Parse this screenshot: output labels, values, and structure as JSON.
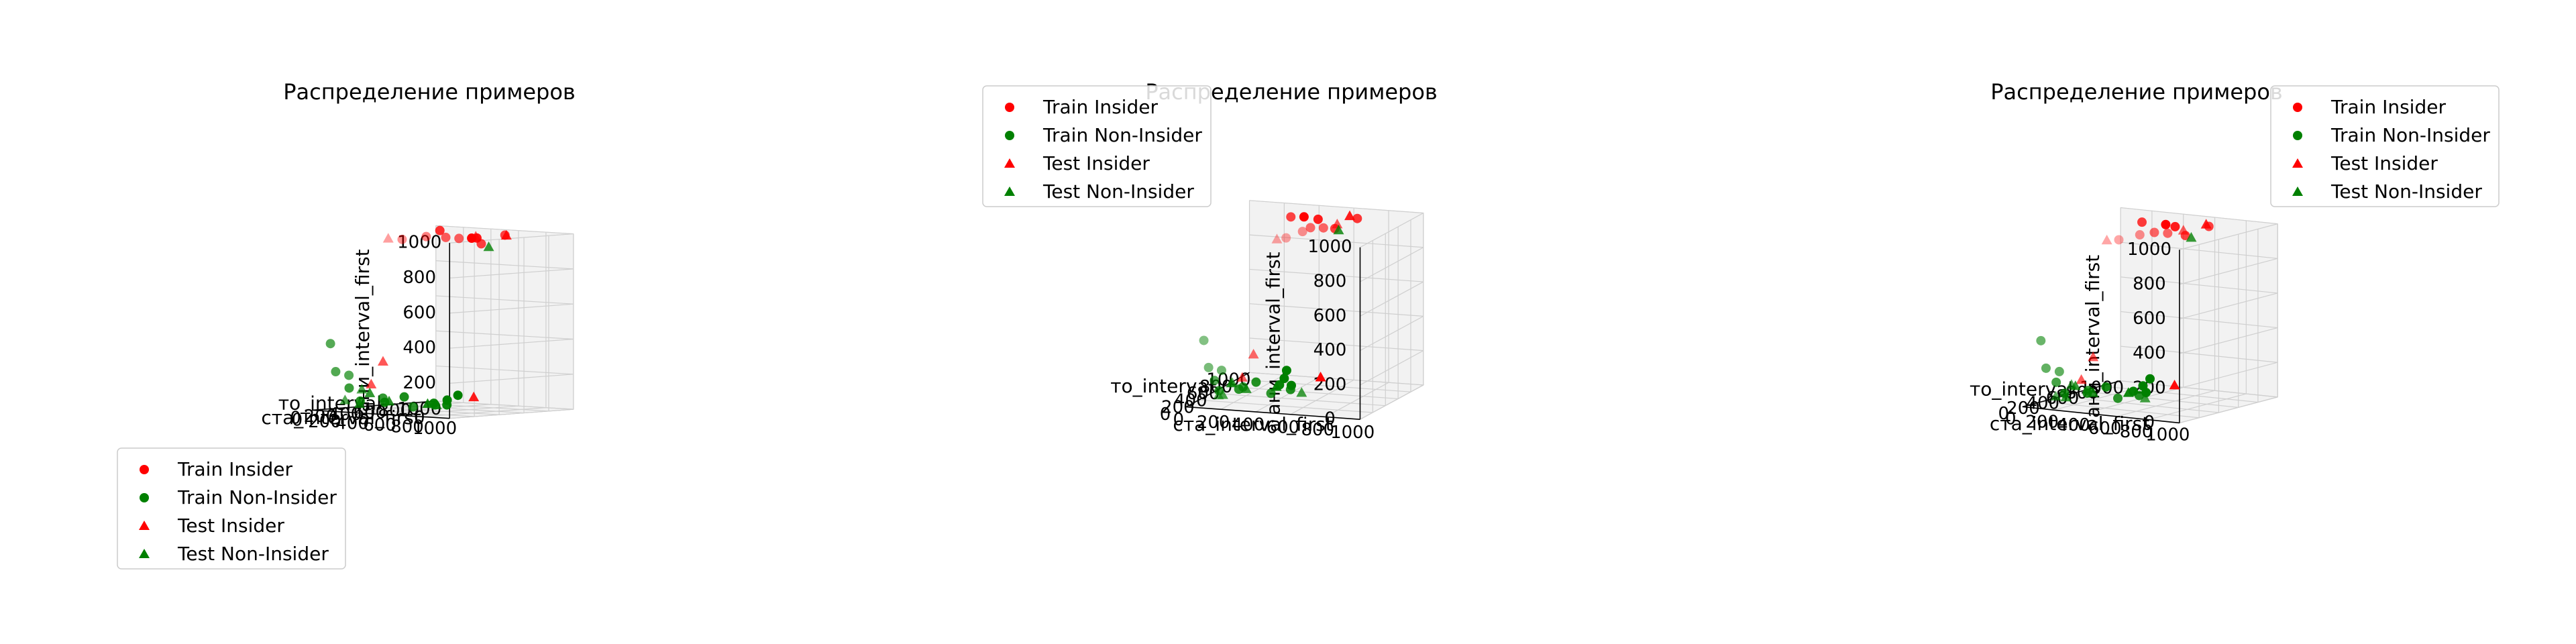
{
  "colors": {
    "train_insider": "#ff0000",
    "train_non_insider": "#008000",
    "test_insider": "#ff0000",
    "test_non_insider": "#008000"
  },
  "legend_labels": [
    "Train Insider",
    "Train Non-Insider",
    "Test Insider",
    "Test Non-Insider"
  ],
  "ticks": [
    "0",
    "200",
    "400",
    "600",
    "800",
    "1000"
  ],
  "chart_data": [
    {
      "type": "scatter",
      "projection": "3d",
      "title": "Распределение примеров",
      "xlabel": "то_interval",
      "ylabel": "ста_interval_first",
      "zlabel": "ани_interval_first",
      "xlim": [
        0,
        1000
      ],
      "ylim": [
        0,
        1000
      ],
      "zlim": [
        0,
        1000
      ],
      "grid": true,
      "legend_loc": "lower-left",
      "view": {
        "elev": 4,
        "azim": -48
      }
    },
    {
      "type": "scatter",
      "projection": "3d",
      "title": "Распределение примеров",
      "xlabel": "то_interval",
      "ylabel": "ста_interval_first",
      "zlabel": "ани_interval_first",
      "xlim": [
        0,
        1000
      ],
      "ylim": [
        0,
        1000
      ],
      "zlim": [
        0,
        1000
      ],
      "grid": true,
      "legend_loc": "upper-left",
      "view": {
        "elev": 12,
        "azim": -70
      }
    },
    {
      "type": "scatter",
      "projection": "3d",
      "title": "Распределение примеров",
      "xlabel": "то_interval",
      "ylabel": "ста_interval_first",
      "zlabel": "ани_interval_first",
      "xlim": [
        0,
        1000
      ],
      "ylim": [
        0,
        1000
      ],
      "zlim": [
        0,
        1000
      ],
      "grid": true,
      "legend_loc": "upper-right",
      "view": {
        "elev": 10,
        "azim": -58
      }
    }
  ],
  "series": [
    {
      "name": "Train Insider",
      "marker": "circle",
      "points": [
        [
          150,
          520,
          990
        ],
        [
          300,
          560,
          1000
        ],
        [
          480,
          540,
          985
        ],
        [
          520,
          600,
          980
        ],
        [
          610,
          380,
          1010
        ],
        [
          700,
          600,
          940
        ],
        [
          820,
          460,
          960
        ],
        [
          900,
          350,
          950
        ],
        [
          780,
          700,
          990
        ]
      ]
    },
    {
      "name": "Train Non-Insider",
      "marker": "circle",
      "points": [
        [
          60,
          80,
          380
        ],
        [
          80,
          100,
          220
        ],
        [
          120,
          160,
          200
        ],
        [
          200,
          90,
          120
        ],
        [
          300,
          80,
          40
        ],
        [
          350,
          200,
          60
        ],
        [
          420,
          150,
          30
        ],
        [
          500,
          220,
          60
        ],
        [
          650,
          300,
          20
        ],
        [
          700,
          350,
          10
        ],
        [
          780,
          280,
          30
        ],
        [
          900,
          250,
          50
        ],
        [
          550,
          400,
          20
        ],
        [
          460,
          320,
          10
        ]
      ]
    },
    {
      "name": "Test Insider",
      "marker": "triangle",
      "points": [
        [
          60,
          500,
          1000
        ],
        [
          600,
          650,
          990
        ],
        [
          880,
          620,
          980
        ],
        [
          240,
          300,
          280
        ],
        [
          200,
          250,
          150
        ],
        [
          750,
          500,
          60
        ]
      ]
    },
    {
      "name": "Test Non-Insider",
      "marker": "triangle",
      "points": [
        [
          100,
          150,
          60
        ],
        [
          180,
          200,
          120
        ],
        [
          250,
          120,
          30
        ],
        [
          400,
          200,
          40
        ],
        [
          600,
          300,
          20
        ],
        [
          760,
          600,
          920
        ],
        [
          450,
          500,
          30
        ],
        [
          300,
          150,
          90
        ]
      ]
    }
  ]
}
